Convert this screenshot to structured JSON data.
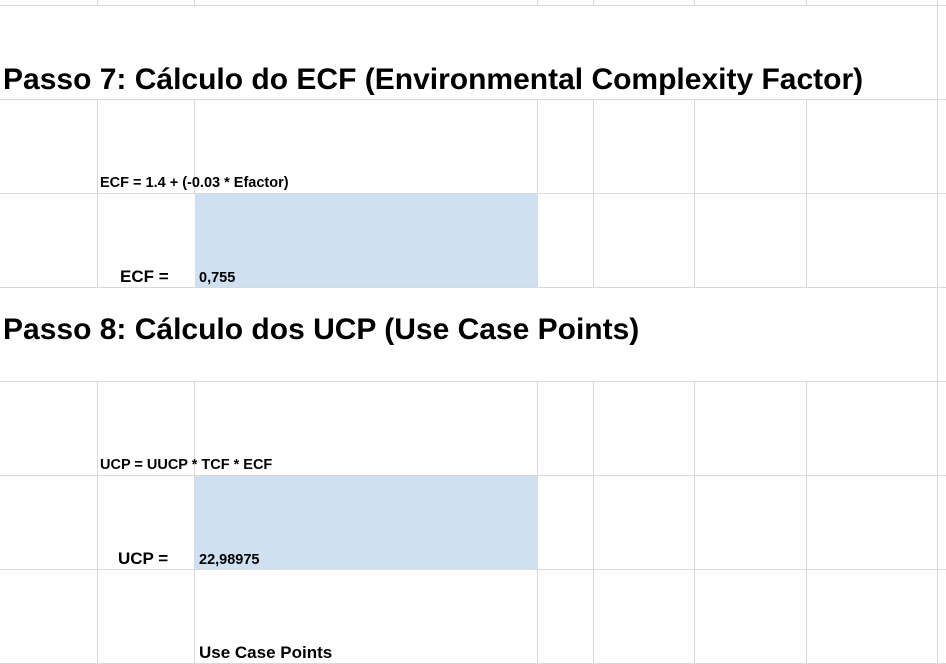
{
  "step7": {
    "heading": "Passo 7: Cálculo do ECF (Environmental Complexity Factor)",
    "formula": "ECF = 1.4 + (-0.03 * Efactor)",
    "result_label": "ECF =",
    "result_value": "0,755"
  },
  "step8": {
    "heading": "Passo 8: Cálculo dos UCP (Use Case Points)",
    "formula": "UCP = UUCP * TCF * ECF",
    "result_label": "UCP =",
    "result_value": "22,98975",
    "caption": "Use Case Points"
  },
  "colors": {
    "result_cell_fill": "#cfe0f2",
    "gridline": "#d9d9d9"
  }
}
